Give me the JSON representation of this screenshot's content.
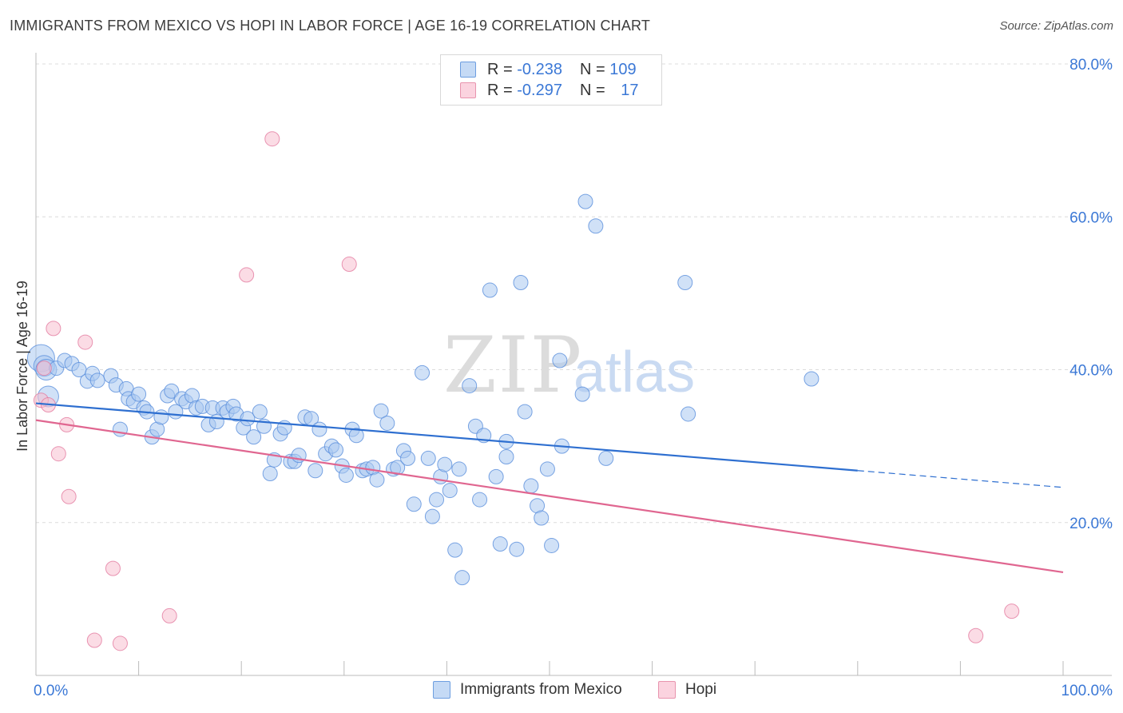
{
  "title": "IMMIGRANTS FROM MEXICO VS HOPI IN LABOR FORCE | AGE 16-19 CORRELATION CHART",
  "source": "Source: ZipAtlas.com",
  "watermark": {
    "zip": "ZIP",
    "atlas": "atlas"
  },
  "legend": {
    "r_label": "R =",
    "n_label": "N =",
    "rows": [
      {
        "r": "-0.238",
        "n": "109",
        "color": "#a9c8f0",
        "border": "#6d9ee0"
      },
      {
        "r": "-0.297",
        "n": "17",
        "color": "#f7bfd0",
        "border": "#e894ae"
      }
    ]
  },
  "bottom_legend": [
    {
      "label": "Immigrants from Mexico",
      "color": "#a9c8f0",
      "border": "#6d9ee0"
    },
    {
      "label": "Hopi",
      "color": "#f7bfd0",
      "border": "#e894ae"
    }
  ],
  "chart_data": {
    "type": "scatter",
    "title": "IMMIGRANTS FROM MEXICO VS HOPI IN LABOR FORCE | AGE 16-19 CORRELATION CHART",
    "xlabel": "",
    "ylabel": "In Labor Force | Age 16-19",
    "xlim": [
      0,
      100
    ],
    "ylim": [
      0,
      80
    ],
    "x_tick_labels": [
      "0.0%",
      "100.0%"
    ],
    "y_ticks": [
      20,
      40,
      60,
      80
    ],
    "y_tick_labels": [
      "20.0%",
      "40.0%",
      "60.0%",
      "80.0%"
    ],
    "grid": true,
    "legend_position": "top-center",
    "series": [
      {
        "name": "Immigrants from Mexico",
        "color": "#a9c8f0",
        "stroke": "#5a8fdc",
        "trend_color": "#2e6fd0",
        "trend": {
          "x0": 0,
          "y0": 35.6,
          "x1": 80,
          "y1": 26.8,
          "dash_to_x": 100,
          "dash_y": 24.6
        },
        "points": [
          [
            0.5,
            41.5
          ],
          [
            0.8,
            40.5
          ],
          [
            1.0,
            40.0
          ],
          [
            1.2,
            36.5
          ],
          [
            2.0,
            40.2
          ],
          [
            2.8,
            41.2
          ],
          [
            3.5,
            40.8
          ],
          [
            4.2,
            40.0
          ],
          [
            5.0,
            38.5
          ],
          [
            5.5,
            39.5
          ],
          [
            6.0,
            38.6
          ],
          [
            7.3,
            39.2
          ],
          [
            7.8,
            38.0
          ],
          [
            8.2,
            32.2
          ],
          [
            8.8,
            37.5
          ],
          [
            9.0,
            36.2
          ],
          [
            9.5,
            35.8
          ],
          [
            10.0,
            36.8
          ],
          [
            10.5,
            35.0
          ],
          [
            10.8,
            34.5
          ],
          [
            11.3,
            31.2
          ],
          [
            11.8,
            32.2
          ],
          [
            12.2,
            33.8
          ],
          [
            12.8,
            36.6
          ],
          [
            13.2,
            37.2
          ],
          [
            13.6,
            34.5
          ],
          [
            14.2,
            36.2
          ],
          [
            14.6,
            35.8
          ],
          [
            15.2,
            36.6
          ],
          [
            15.6,
            35.0
          ],
          [
            16.2,
            35.2
          ],
          [
            16.8,
            32.8
          ],
          [
            17.2,
            35.0
          ],
          [
            17.6,
            33.2
          ],
          [
            18.2,
            35.0
          ],
          [
            18.6,
            34.5
          ],
          [
            19.2,
            35.2
          ],
          [
            19.5,
            34.2
          ],
          [
            20.2,
            32.4
          ],
          [
            20.6,
            33.6
          ],
          [
            21.2,
            31.2
          ],
          [
            21.8,
            34.5
          ],
          [
            22.2,
            32.6
          ],
          [
            22.8,
            26.4
          ],
          [
            23.2,
            28.2
          ],
          [
            23.8,
            31.6
          ],
          [
            24.2,
            32.4
          ],
          [
            24.8,
            28.0
          ],
          [
            25.2,
            28.0
          ],
          [
            25.6,
            28.8
          ],
          [
            26.2,
            33.8
          ],
          [
            26.8,
            33.6
          ],
          [
            27.2,
            26.8
          ],
          [
            27.6,
            32.2
          ],
          [
            28.2,
            29.0
          ],
          [
            28.8,
            30.0
          ],
          [
            29.2,
            29.5
          ],
          [
            29.8,
            27.4
          ],
          [
            30.2,
            26.2
          ],
          [
            30.8,
            32.2
          ],
          [
            31.2,
            31.4
          ],
          [
            31.8,
            26.8
          ],
          [
            32.2,
            27.0
          ],
          [
            32.8,
            27.2
          ],
          [
            33.2,
            25.6
          ],
          [
            33.6,
            34.6
          ],
          [
            34.2,
            33.0
          ],
          [
            34.8,
            27.0
          ],
          [
            35.2,
            27.2
          ],
          [
            35.8,
            29.4
          ],
          [
            36.2,
            28.4
          ],
          [
            36.8,
            22.4
          ],
          [
            37.6,
            39.6
          ],
          [
            38.2,
            28.4
          ],
          [
            38.6,
            20.8
          ],
          [
            39.0,
            23.0
          ],
          [
            39.4,
            26.0
          ],
          [
            39.8,
            27.6
          ],
          [
            40.3,
            24.2
          ],
          [
            40.8,
            16.4
          ],
          [
            41.2,
            27.0
          ],
          [
            41.5,
            12.8
          ],
          [
            42.2,
            37.9
          ],
          [
            42.8,
            32.6
          ],
          [
            43.2,
            23.0
          ],
          [
            43.6,
            31.4
          ],
          [
            44.2,
            50.4
          ],
          [
            44.8,
            26.0
          ],
          [
            45.2,
            17.2
          ],
          [
            45.8,
            28.6
          ],
          [
            45.8,
            30.6
          ],
          [
            46.8,
            16.5
          ],
          [
            47.2,
            51.4
          ],
          [
            47.6,
            34.5
          ],
          [
            48.2,
            24.8
          ],
          [
            48.8,
            22.2
          ],
          [
            49.2,
            20.6
          ],
          [
            49.8,
            27.0
          ],
          [
            50.2,
            17.0
          ],
          [
            51.0,
            41.2
          ],
          [
            51.2,
            30.0
          ],
          [
            53.2,
            36.8
          ],
          [
            53.5,
            62.0
          ],
          [
            54.5,
            58.8
          ],
          [
            55.5,
            28.4
          ],
          [
            63.2,
            51.4
          ],
          [
            63.5,
            34.2
          ],
          [
            75.5,
            38.8
          ]
        ]
      },
      {
        "name": "Hopi",
        "color": "#f7bfd0",
        "stroke": "#e47ca0",
        "trend_color": "#e06690",
        "trend": {
          "x0": 0,
          "y0": 33.4,
          "x1": 100,
          "y1": 13.5
        },
        "points": [
          [
            0.5,
            36.0
          ],
          [
            0.8,
            40.2
          ],
          [
            1.2,
            35.4
          ],
          [
            1.7,
            45.4
          ],
          [
            2.2,
            29.0
          ],
          [
            3.0,
            32.8
          ],
          [
            3.2,
            23.4
          ],
          [
            4.8,
            43.6
          ],
          [
            5.7,
            4.6
          ],
          [
            7.5,
            14.0
          ],
          [
            8.2,
            4.2
          ],
          [
            13.0,
            7.8
          ],
          [
            20.5,
            52.4
          ],
          [
            23.0,
            70.2
          ],
          [
            30.5,
            53.8
          ],
          [
            91.5,
            5.2
          ],
          [
            95.0,
            8.4
          ]
        ]
      }
    ]
  }
}
